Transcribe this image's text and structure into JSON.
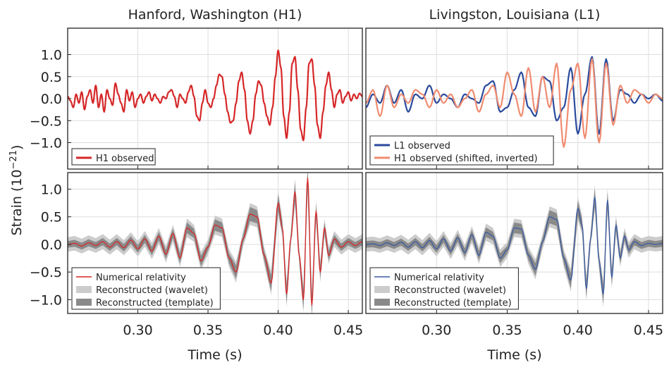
{
  "figure": {
    "ylabel": "Strain (10",
    "ylabel_exp": "−21",
    "ylabel_close": ")",
    "xlabel": "Time (s)"
  },
  "colors": {
    "h1": "#d62728",
    "l1": "#2a4a9c",
    "h1_shifted": "#f08c70",
    "nr_h1": "#d62728",
    "nr_l1": "#3a5ba0",
    "wavelet": "#cccccc",
    "template": "#8a8a8a",
    "grid": "#dddddd"
  },
  "chart_data": [
    {
      "type": "line",
      "title": "Hanford, Washington (H1)",
      "xlim": [
        0.25,
        0.46
      ],
      "ylim": [
        -1.6,
        1.6
      ],
      "xticks": [
        0.3,
        0.35,
        0.4,
        0.45
      ],
      "yticks": [
        -1.0,
        -0.5,
        0.0,
        0.5,
        1.0
      ],
      "ytick_labels": [
        "−1.0",
        "−0.5",
        "0.0",
        "0.5",
        "1.0"
      ],
      "legend_position": "bottom-left",
      "grid": true,
      "series": [
        {
          "name": "H1 observed",
          "color": "#d62728",
          "kind": "line",
          "x": [
            0.25,
            0.252,
            0.254,
            0.256,
            0.258,
            0.26,
            0.262,
            0.264,
            0.266,
            0.268,
            0.27,
            0.272,
            0.274,
            0.276,
            0.278,
            0.28,
            0.282,
            0.284,
            0.286,
            0.288,
            0.29,
            0.292,
            0.294,
            0.296,
            0.298,
            0.3,
            0.302,
            0.304,
            0.306,
            0.308,
            0.31,
            0.312,
            0.314,
            0.316,
            0.318,
            0.32,
            0.322,
            0.324,
            0.326,
            0.328,
            0.33,
            0.332,
            0.334,
            0.336,
            0.338,
            0.34,
            0.342,
            0.344,
            0.346,
            0.348,
            0.35,
            0.352,
            0.354,
            0.356,
            0.358,
            0.36,
            0.362,
            0.364,
            0.366,
            0.368,
            0.37,
            0.372,
            0.374,
            0.376,
            0.378,
            0.38,
            0.382,
            0.384,
            0.386,
            0.388,
            0.39,
            0.392,
            0.394,
            0.396,
            0.398,
            0.4,
            0.402,
            0.404,
            0.406,
            0.408,
            0.41,
            0.412,
            0.414,
            0.416,
            0.418,
            0.42,
            0.422,
            0.424,
            0.426,
            0.428,
            0.43,
            0.432,
            0.434,
            0.436,
            0.438,
            0.44,
            0.442,
            0.444,
            0.446,
            0.448,
            0.45,
            0.452,
            0.454,
            0.456,
            0.458,
            0.46
          ],
          "y": [
            0.05,
            -0.05,
            -0.2,
            0.1,
            -0.1,
            0.15,
            -0.25,
            0.05,
            0.2,
            -0.1,
            0.3,
            -0.2,
            0.1,
            -0.3,
            0.2,
            0.0,
            -0.15,
            0.35,
            0.1,
            -0.1,
            -0.3,
            0.2,
            -0.05,
            0.15,
            -0.2,
            0.0,
            0.1,
            -0.1,
            0.05,
            0.15,
            -0.05,
            0.1,
            0.0,
            -0.1,
            0.05,
            0.0,
            0.15,
            0.2,
            0.05,
            -0.2,
            0.1,
            0.0,
            -0.1,
            0.15,
            0.3,
            0.05,
            -0.4,
            -0.5,
            -0.1,
            0.2,
            -0.1,
            -0.2,
            0.0,
            0.3,
            0.55,
            0.5,
            0.1,
            -0.3,
            -0.55,
            -0.5,
            -0.1,
            0.4,
            0.6,
            0.2,
            -0.5,
            -0.8,
            -0.5,
            0.1,
            0.4,
            0.3,
            -0.1,
            -0.4,
            -0.6,
            -0.2,
            0.5,
            1.1,
            0.7,
            -0.4,
            -0.9,
            -0.3,
            0.8,
            0.95,
            0.2,
            -0.7,
            -0.95,
            -0.2,
            0.8,
            0.9,
            0.3,
            -0.6,
            -0.9,
            -0.3,
            0.3,
            0.6,
            0.2,
            -0.2,
            0.1,
            0.2,
            -0.1,
            0.05,
            0.15,
            -0.05,
            0.1,
            0.0,
            0.12,
            0.05
          ]
        }
      ]
    },
    {
      "type": "line",
      "title": "Livingston, Louisiana (L1)",
      "xlim": [
        0.25,
        0.46
      ],
      "ylim": [
        -1.6,
        1.6
      ],
      "xticks": [
        0.3,
        0.35,
        0.4,
        0.45
      ],
      "legend_position": "bottom-left",
      "grid": true,
      "series": [
        {
          "name": "L1 observed",
          "color": "#2a4a9c",
          "kind": "line",
          "x": [
            0.25,
            0.255,
            0.26,
            0.265,
            0.27,
            0.275,
            0.28,
            0.285,
            0.29,
            0.295,
            0.3,
            0.305,
            0.31,
            0.315,
            0.32,
            0.325,
            0.33,
            0.335,
            0.34,
            0.345,
            0.35,
            0.355,
            0.36,
            0.365,
            0.37,
            0.375,
            0.38,
            0.385,
            0.39,
            0.395,
            0.4,
            0.405,
            0.41,
            0.415,
            0.42,
            0.425,
            0.43,
            0.435,
            0.44,
            0.445,
            0.45,
            0.455,
            0.46
          ],
          "y": [
            -0.2,
            0.1,
            -0.1,
            0.3,
            -0.1,
            0.2,
            -0.3,
            0.1,
            0.0,
            0.3,
            -0.1,
            0.1,
            0.0,
            -0.2,
            0.1,
            0.0,
            -0.1,
            0.3,
            0.4,
            -0.3,
            -0.2,
            0.2,
            0.6,
            -0.2,
            -0.4,
            0.5,
            0.4,
            -0.5,
            -0.2,
            0.7,
            -0.8,
            0.1,
            0.95,
            -0.8,
            0.9,
            -0.5,
            0.2,
            0.1,
            -0.1,
            0.1,
            0.0,
            0.1,
            -0.05
          ]
        },
        {
          "name": "H1 observed (shifted, inverted)",
          "color": "#f08c70",
          "kind": "line",
          "x": [
            0.25,
            0.255,
            0.26,
            0.265,
            0.27,
            0.275,
            0.28,
            0.285,
            0.29,
            0.295,
            0.3,
            0.305,
            0.31,
            0.315,
            0.32,
            0.325,
            0.33,
            0.335,
            0.34,
            0.345,
            0.35,
            0.355,
            0.36,
            0.365,
            0.37,
            0.375,
            0.38,
            0.385,
            0.39,
            0.395,
            0.4,
            0.405,
            0.41,
            0.415,
            0.42,
            0.425,
            0.43,
            0.435,
            0.44,
            0.445,
            0.45,
            0.455,
            0.46
          ],
          "y": [
            -0.1,
            0.2,
            -0.4,
            0.3,
            -0.2,
            0.1,
            -0.1,
            0.2,
            0.1,
            -0.2,
            0.2,
            -0.1,
            0.1,
            -0.2,
            0.0,
            0.2,
            -0.3,
            0.1,
            0.3,
            -0.2,
            0.6,
            0.1,
            -0.4,
            0.7,
            -0.3,
            0.5,
            -0.2,
            0.8,
            -1.1,
            0.2,
            0.8,
            -0.9,
            0.9,
            -1.0,
            0.8,
            -0.6,
            0.3,
            -0.1,
            0.2,
            0.1,
            -0.1,
            0.1,
            0.0
          ]
        }
      ]
    },
    {
      "type": "line",
      "xlim": [
        0.25,
        0.46
      ],
      "ylim": [
        -1.25,
        1.3
      ],
      "xticks": [
        0.3,
        0.35,
        0.4,
        0.45
      ],
      "xtick_labels": [
        "0.30",
        "0.35",
        "0.40",
        "0.45"
      ],
      "yticks": [
        -1.0,
        -0.5,
        0.0,
        0.5,
        1.0
      ],
      "ytick_labels": [
        "−1.0",
        "−0.5",
        "0.0",
        "0.5",
        "1.0"
      ],
      "legend_position": "bottom-left",
      "grid": true,
      "series": [
        {
          "name": "Numerical relativity",
          "color": "#d62728",
          "kind": "line",
          "x": [
            0.25,
            0.255,
            0.26,
            0.265,
            0.27,
            0.275,
            0.28,
            0.285,
            0.29,
            0.295,
            0.3,
            0.305,
            0.31,
            0.315,
            0.32,
            0.325,
            0.33,
            0.335,
            0.34,
            0.345,
            0.35,
            0.355,
            0.36,
            0.365,
            0.37,
            0.375,
            0.38,
            0.385,
            0.39,
            0.395,
            0.4,
            0.403,
            0.406,
            0.409,
            0.412,
            0.415,
            0.418,
            0.421,
            0.424,
            0.427,
            0.43,
            0.433,
            0.436,
            0.44,
            0.445,
            0.45,
            0.455,
            0.46
          ],
          "y": [
            0.0,
            0.02,
            -0.03,
            0.03,
            -0.02,
            0.05,
            -0.05,
            0.05,
            -0.06,
            0.08,
            -0.08,
            0.1,
            -0.12,
            0.15,
            -0.18,
            0.2,
            -0.25,
            0.3,
            0.2,
            -0.3,
            -0.05,
            0.35,
            0.3,
            -0.25,
            -0.5,
            0.1,
            0.55,
            0.5,
            -0.2,
            -0.7,
            0.75,
            0.3,
            -0.9,
            0.1,
            0.95,
            -0.2,
            -1.0,
            1.2,
            -1.1,
            0.6,
            -0.5,
            0.3,
            -0.2,
            0.1,
            -0.05,
            0.05,
            -0.02,
            0.05
          ]
        },
        {
          "name": "Reconstructed (wavelet)",
          "color": "#cccccc",
          "kind": "band"
        },
        {
          "name": "Reconstructed (template)",
          "color": "#8a8a8a",
          "kind": "band"
        }
      ]
    },
    {
      "type": "line",
      "xlim": [
        0.25,
        0.46
      ],
      "ylim": [
        -1.25,
        1.3
      ],
      "xticks": [
        0.3,
        0.35,
        0.4,
        0.45
      ],
      "xtick_labels": [
        "0.30",
        "0.35",
        "0.40",
        "0.45"
      ],
      "legend_position": "bottom-left",
      "grid": true,
      "series": [
        {
          "name": "Numerical relativity",
          "color": "#3a5ba0",
          "kind": "line",
          "x": [
            0.25,
            0.255,
            0.26,
            0.265,
            0.27,
            0.275,
            0.28,
            0.285,
            0.29,
            0.295,
            0.3,
            0.305,
            0.31,
            0.315,
            0.32,
            0.325,
            0.33,
            0.335,
            0.34,
            0.345,
            0.35,
            0.355,
            0.36,
            0.365,
            0.37,
            0.375,
            0.38,
            0.385,
            0.39,
            0.395,
            0.4,
            0.403,
            0.406,
            0.409,
            0.412,
            0.415,
            0.418,
            0.421,
            0.424,
            0.427,
            0.43,
            0.433,
            0.436,
            0.44,
            0.445,
            0.45,
            0.455,
            0.46
          ],
          "y": [
            0.0,
            0.01,
            -0.02,
            0.03,
            -0.02,
            0.04,
            -0.05,
            0.05,
            -0.06,
            0.07,
            -0.08,
            0.1,
            -0.12,
            0.12,
            -0.15,
            0.18,
            -0.2,
            0.22,
            0.15,
            -0.25,
            -0.1,
            0.3,
            0.28,
            -0.2,
            -0.45,
            0.05,
            0.5,
            0.45,
            -0.25,
            -0.65,
            0.65,
            0.35,
            -0.8,
            0.1,
            0.85,
            -0.3,
            -0.9,
            0.8,
            -0.6,
            0.35,
            -0.25,
            0.15,
            -0.1,
            0.05,
            -0.02,
            0.02,
            0.0,
            0.02
          ]
        },
        {
          "name": "Reconstructed (wavelet)",
          "color": "#cccccc",
          "kind": "band"
        },
        {
          "name": "Reconstructed (template)",
          "color": "#8a8a8a",
          "kind": "band"
        }
      ]
    }
  ]
}
